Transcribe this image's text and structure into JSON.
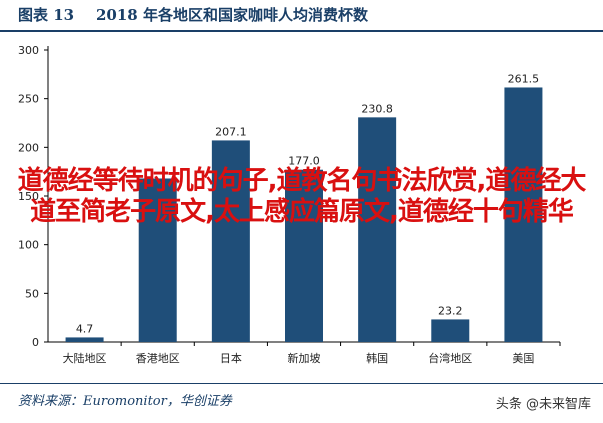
{
  "figure": {
    "label": "图表 13",
    "title": "2018 年各地区和国家咖啡人均消费杯数"
  },
  "overlay_text": "道德经等待时机的句子,道教名句书法欣赏,道德经大道至简老子原文,太上感应篇原文,道德经十句精华",
  "source": "资料来源：Euromonitor，华创证券",
  "watermark": "头条 @未来智库",
  "chart_data": {
    "type": "bar",
    "categories": [
      "大陆地区",
      "香港地区",
      "日本",
      "新加坡",
      "韩国",
      "台湾地区",
      "美国"
    ],
    "values": [
      4.7,
      168.0,
      207.1,
      177.0,
      230.8,
      23.2,
      261.5
    ],
    "value_labels": [
      "4.7",
      "",
      "207.1",
      "177.0",
      "230.8",
      "23.2",
      "261.5"
    ],
    "yticks": [
      "0",
      "50",
      "100",
      "150",
      "200",
      "250",
      "300"
    ],
    "ylim": [
      0,
      300
    ],
    "xlabel": "",
    "ylabel": "",
    "bar_color": "#1f4e79",
    "grid": false
  }
}
